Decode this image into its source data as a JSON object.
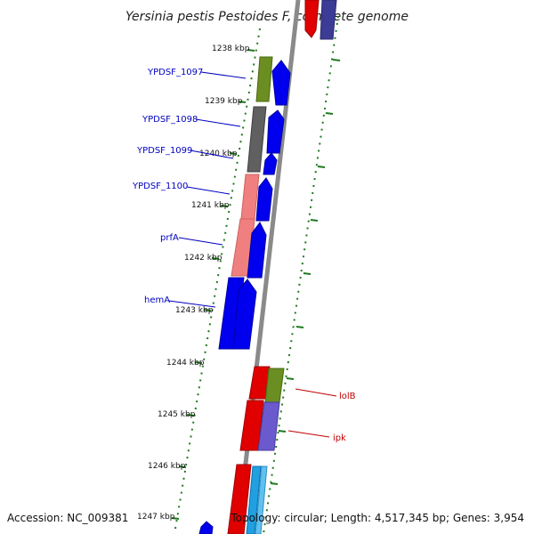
{
  "title": "Yersinia pestis Pestoides F, complete genome",
  "footer": {
    "accession": "Accession: NC_009381",
    "summary": "Topology: circular; Length: 4,517,345 bp; Genes: 3,954"
  },
  "colors": {
    "backbone": "#8a8a8a",
    "tick": "#1e7a1e",
    "label_left": "#0000c0",
    "label_right": "#c00000",
    "blue": "#0000ee",
    "olive": "#6b8e23",
    "gray": "#606060",
    "salmon": "#f08080",
    "red": "#e00000",
    "purple": "#6a5acd",
    "cyan": "#20a0e0",
    "navy": "#3c3c96"
  },
  "scale": {
    "kbp_labels": [
      "1238 kbp",
      "1239 kbp",
      "1240 kbp",
      "1241 kbp",
      "1242 kbp",
      "1243 kbp",
      "1244 kbp",
      "1245 kbp",
      "1246 kbp",
      "1247 kbp"
    ]
  },
  "gene_labels": [
    {
      "id": "ypdsf-1097",
      "text": "YPDSF_1097",
      "side": "left"
    },
    {
      "id": "ypdsf-1098",
      "text": "YPDSF_1098",
      "side": "left"
    },
    {
      "id": "ypdsf-1099",
      "text": "YPDSF_1099",
      "side": "left"
    },
    {
      "id": "ypdsf-1100",
      "text": "YPDSF_1100",
      "side": "left"
    },
    {
      "id": "prfa",
      "text": "prfA",
      "side": "left"
    },
    {
      "id": "hema",
      "text": "hemA",
      "side": "left"
    },
    {
      "id": "lolb",
      "text": "lolB",
      "side": "right"
    },
    {
      "id": "ipk",
      "text": "ipk",
      "side": "right"
    }
  ]
}
